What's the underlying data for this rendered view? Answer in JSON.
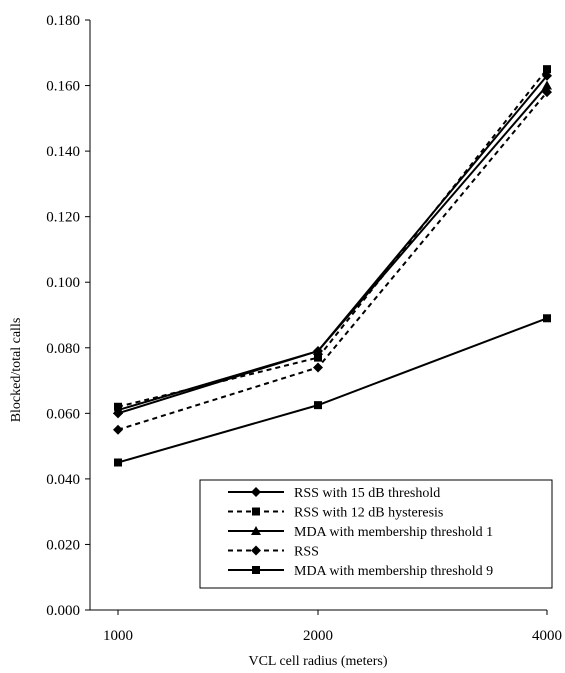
{
  "chart_data": {
    "type": "line",
    "title": "",
    "xlabel": "VCL cell radius (meters)",
    "ylabel": "Blocked/total calls",
    "categories": [
      "1000",
      "2000",
      "4000"
    ],
    "ylim": [
      0,
      0.18
    ],
    "ytick_labels": [
      "0.000",
      "0.020",
      "0.040",
      "0.060",
      "0.080",
      "0.100",
      "0.120",
      "0.140",
      "0.160",
      "0.180"
    ],
    "grid": false,
    "legend_position": "bottom-right",
    "series": [
      {
        "name": "RSS with 15 dB threshold",
        "values": [
          0.06,
          0.079,
          0.163
        ],
        "line_style": "solid",
        "marker": "diamond",
        "line_width": 2
      },
      {
        "name": "RSS with 12 dB hysteresis",
        "values": [
          0.062,
          0.077,
          0.165
        ],
        "line_style": "dashed",
        "marker": "square",
        "line_width": 2
      },
      {
        "name": "MDA with membership threshold 1",
        "values": [
          0.061,
          0.079,
          0.16
        ],
        "line_style": "solid",
        "marker": "triangle",
        "line_width": 2
      },
      {
        "name": "RSS",
        "values": [
          0.055,
          0.074,
          0.158
        ],
        "line_style": "dashed",
        "marker": "diamond",
        "line_width": 2
      },
      {
        "name": "MDA with membership threshold 9",
        "values": [
          0.045,
          0.0625,
          0.089
        ],
        "line_style": "solid",
        "marker": "square",
        "line_width": 2
      }
    ]
  }
}
